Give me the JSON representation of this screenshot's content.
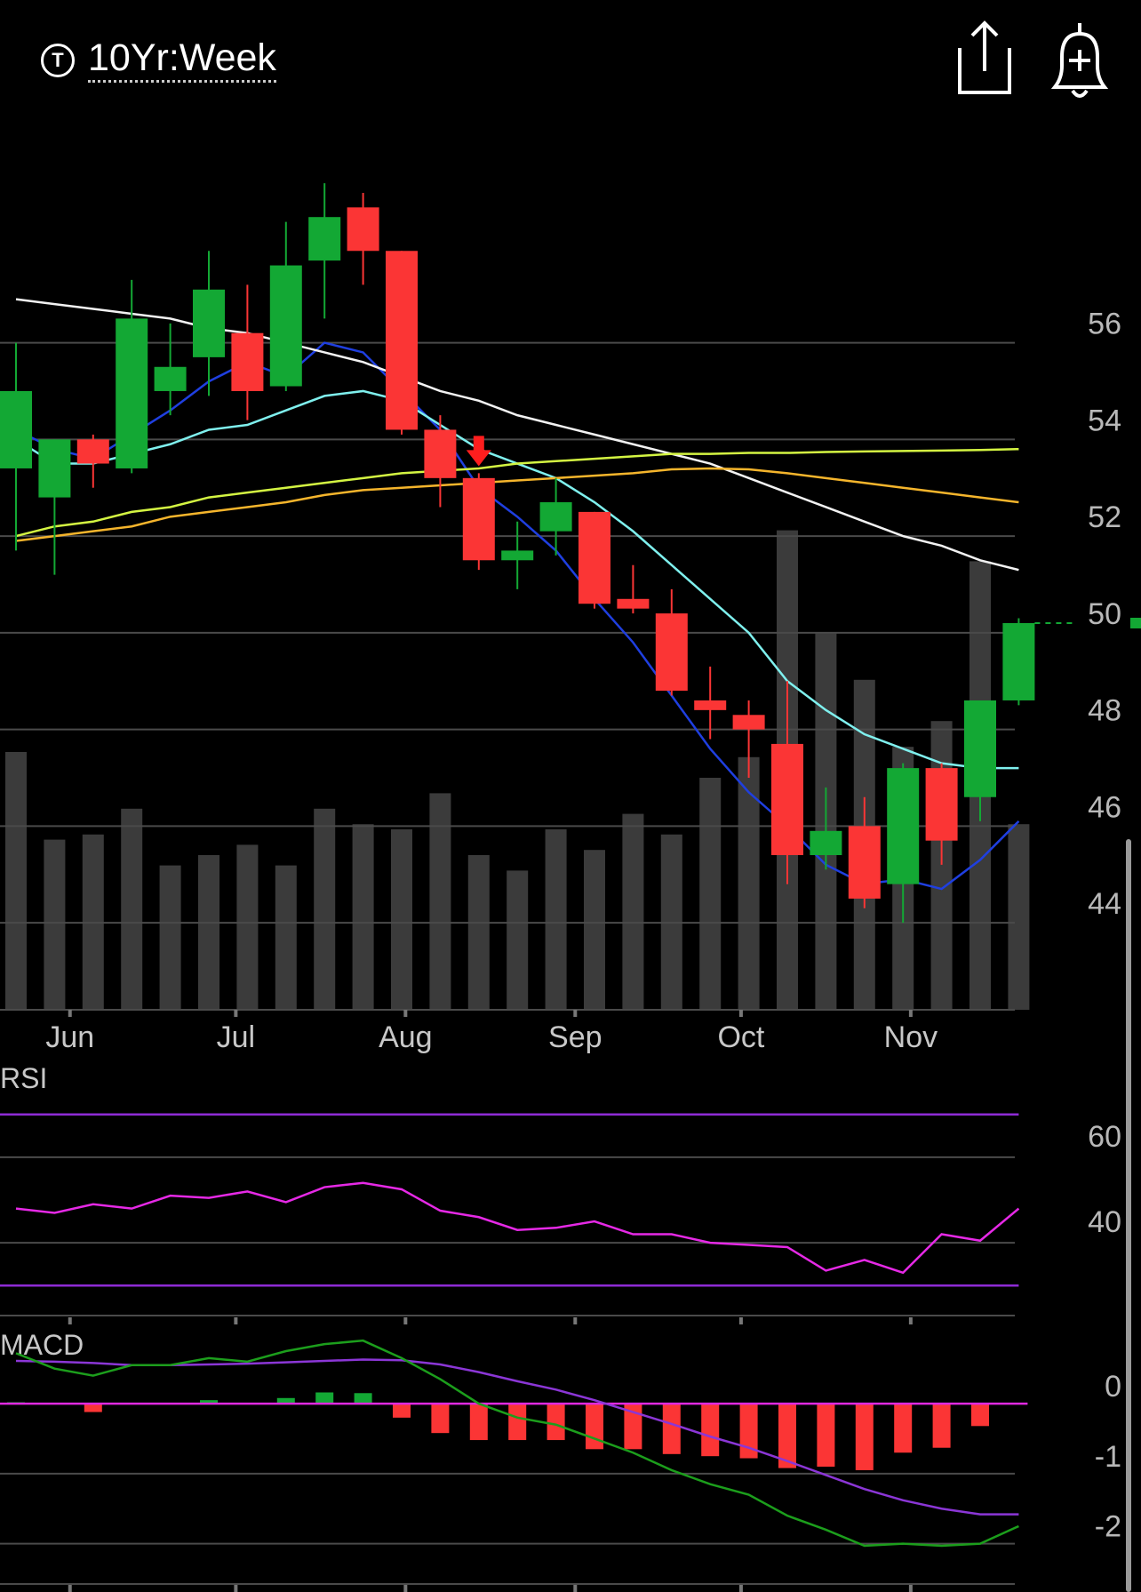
{
  "header": {
    "symbol_icon": "T",
    "title": "10Yr:Week",
    "share_icon": "share-icon",
    "alert_icon": "add-alert-bell-icon"
  },
  "colors": {
    "up": "#13a834",
    "down": "#fb3535",
    "volume": "#3b3b3b",
    "ma_blue": "#1f3fe0",
    "ma_cyan": "#7ff0ee",
    "ma_white": "#f2f2f2",
    "ma_lime": "#d4f542",
    "ma_orange": "#f5b52c",
    "rsi": "#e629e6",
    "rsi_bounds": "#8e2bd4",
    "macd": "#1c9e1c",
    "signal": "#8b36d6",
    "zero": "#e029e0"
  },
  "chart_data": [
    {
      "type": "candlestick",
      "panel": "price",
      "y_ticks": [
        56,
        54,
        52,
        50,
        48,
        46,
        44
      ],
      "ylim": [
        42.2,
        60.7
      ],
      "x_tick_labels": [
        {
          "label": "Jun",
          "index": 1.4
        },
        {
          "label": "Jul",
          "index": 5.7
        },
        {
          "label": "Aug",
          "index": 10.1
        },
        {
          "label": "Sep",
          "index": 14.5
        },
        {
          "label": "Oct",
          "index": 18.8
        },
        {
          "label": "Nov",
          "index": 23.2
        }
      ],
      "candles": [
        {
          "o": 53.4,
          "h": 56.0,
          "l": 51.7,
          "c": 55.0
        },
        {
          "o": 52.8,
          "h": 54.0,
          "l": 51.2,
          "c": 54.0
        },
        {
          "o": 54.0,
          "h": 54.1,
          "l": 53.0,
          "c": 53.5
        },
        {
          "o": 53.4,
          "h": 57.3,
          "l": 53.3,
          "c": 56.5
        },
        {
          "o": 55.0,
          "h": 56.4,
          "l": 54.5,
          "c": 55.5
        },
        {
          "o": 55.7,
          "h": 57.9,
          "l": 54.9,
          "c": 57.1
        },
        {
          "o": 56.2,
          "h": 57.2,
          "l": 54.4,
          "c": 55.0
        },
        {
          "o": 55.1,
          "h": 58.5,
          "l": 55.0,
          "c": 57.6
        },
        {
          "o": 57.7,
          "h": 59.3,
          "l": 56.5,
          "c": 58.6
        },
        {
          "o": 58.8,
          "h": 59.1,
          "l": 57.2,
          "c": 57.9
        },
        {
          "o": 57.9,
          "h": 57.9,
          "l": 54.1,
          "c": 54.2
        },
        {
          "o": 54.2,
          "h": 54.5,
          "l": 52.6,
          "c": 53.2
        },
        {
          "o": 53.2,
          "h": 53.3,
          "l": 51.3,
          "c": 51.5
        },
        {
          "o": 51.5,
          "h": 52.3,
          "l": 50.9,
          "c": 51.7
        },
        {
          "o": 52.1,
          "h": 53.2,
          "l": 51.6,
          "c": 52.7
        },
        {
          "o": 52.5,
          "h": 52.5,
          "l": 50.5,
          "c": 50.6
        },
        {
          "o": 50.7,
          "h": 51.4,
          "l": 50.4,
          "c": 50.5
        },
        {
          "o": 50.4,
          "h": 50.9,
          "l": 48.7,
          "c": 48.8
        },
        {
          "o": 48.6,
          "h": 49.3,
          "l": 47.8,
          "c": 48.4
        },
        {
          "o": 48.3,
          "h": 48.6,
          "l": 47.0,
          "c": 48.0
        },
        {
          "o": 47.7,
          "h": 49.0,
          "l": 44.8,
          "c": 45.4
        },
        {
          "o": 45.4,
          "h": 46.8,
          "l": 45.1,
          "c": 45.9
        },
        {
          "o": 46.0,
          "h": 46.6,
          "l": 44.3,
          "c": 44.5
        },
        {
          "o": 44.8,
          "h": 47.3,
          "l": 44.0,
          "c": 47.2
        },
        {
          "o": 47.2,
          "h": 47.3,
          "l": 45.2,
          "c": 45.7
        },
        {
          "o": 46.6,
          "h": 48.6,
          "l": 46.1,
          "c": 48.6
        },
        {
          "o": 48.6,
          "h": 50.3,
          "l": 48.5,
          "c": 50.2
        }
      ],
      "volume": [
        0.5,
        0.33,
        0.34,
        0.39,
        0.28,
        0.3,
        0.32,
        0.28,
        0.39,
        0.36,
        0.35,
        0.42,
        0.3,
        0.27,
        0.35,
        0.31,
        0.38,
        0.34,
        0.45,
        0.49,
        0.93,
        0.73,
        0.64,
        0.51,
        0.56,
        0.87,
        0.36
      ],
      "moving_averages": [
        {
          "color_key": "ma_blue",
          "values": [
            54.2,
            53.8,
            53.6,
            54.1,
            54.6,
            55.2,
            55.6,
            55.3,
            56.0,
            55.8,
            55.0,
            54.2,
            53.0,
            52.4,
            51.7,
            50.7,
            49.8,
            48.7,
            47.6,
            46.7,
            46.0,
            45.2,
            44.8,
            44.9,
            44.7,
            45.3,
            46.1
          ]
        },
        {
          "color_key": "ma_cyan",
          "values": [
            54.0,
            53.5,
            53.5,
            53.7,
            53.9,
            54.2,
            54.3,
            54.6,
            54.9,
            55.0,
            54.8,
            54.3,
            53.8,
            53.5,
            53.2,
            52.7,
            52.1,
            51.4,
            50.7,
            50.0,
            49.0,
            48.4,
            47.9,
            47.6,
            47.3,
            47.2,
            47.2
          ]
        },
        {
          "color_key": "ma_white",
          "values": [
            56.9,
            56.8,
            56.7,
            56.6,
            56.5,
            56.3,
            56.2,
            56.0,
            55.8,
            55.6,
            55.3,
            55.0,
            54.8,
            54.5,
            54.3,
            54.1,
            53.9,
            53.7,
            53.5,
            53.2,
            52.9,
            52.6,
            52.3,
            52.0,
            51.8,
            51.5,
            51.3
          ]
        },
        {
          "color_key": "ma_lime",
          "values": [
            52.0,
            52.2,
            52.3,
            52.5,
            52.6,
            52.8,
            52.9,
            53.0,
            53.1,
            53.2,
            53.3,
            53.35,
            53.4,
            53.5,
            53.55,
            53.6,
            53.65,
            53.7,
            53.7,
            53.72,
            53.72,
            53.74,
            53.75,
            53.76,
            53.77,
            53.78,
            53.8
          ]
        },
        {
          "color_key": "ma_orange",
          "values": [
            51.9,
            52.0,
            52.1,
            52.2,
            52.4,
            52.5,
            52.6,
            52.7,
            52.85,
            52.95,
            53.0,
            53.05,
            53.1,
            53.15,
            53.2,
            53.25,
            53.3,
            53.38,
            53.4,
            53.38,
            53.3,
            53.2,
            53.1,
            53.0,
            52.9,
            52.8,
            52.7
          ]
        }
      ],
      "last_price": 50.2,
      "signal_marker_index": 12,
      "grid": true
    },
    {
      "type": "line",
      "panel": "rsi",
      "title": "RSI",
      "y_ticks": [
        60,
        40
      ],
      "upper_band": 70,
      "lower_band": 30,
      "ylim": [
        23,
        77
      ],
      "values": [
        48,
        47,
        49,
        48,
        51,
        50.5,
        52,
        49.5,
        53,
        54,
        52.5,
        47.5,
        46,
        43,
        43.5,
        45,
        42,
        42,
        40,
        39.5,
        39,
        33.5,
        36,
        33,
        42,
        40.5,
        48
      ]
    },
    {
      "type": "line",
      "panel": "macd",
      "title": "MACD",
      "y_ticks": [
        0,
        -1,
        -2
      ],
      "ylim": [
        -2.55,
        0.75
      ],
      "macd": [
        0.72,
        0.5,
        0.4,
        0.55,
        0.55,
        0.65,
        0.6,
        0.75,
        0.85,
        0.9,
        0.65,
        0.35,
        0.0,
        -0.2,
        -0.3,
        -0.5,
        -0.7,
        -0.95,
        -1.15,
        -1.3,
        -1.6,
        -1.8,
        -2.03,
        -2.0,
        -2.03,
        -2.0,
        -1.75
      ],
      "signal": [
        0.61,
        0.6,
        0.58,
        0.55,
        0.55,
        0.56,
        0.57,
        0.59,
        0.61,
        0.63,
        0.62,
        0.56,
        0.45,
        0.32,
        0.2,
        0.05,
        -0.12,
        -0.29,
        -0.47,
        -0.63,
        -0.82,
        -1.02,
        -1.22,
        -1.38,
        -1.5,
        -1.58,
        -1.58
      ],
      "histogram": [
        0.02,
        0.0,
        -0.12,
        0.0,
        0.0,
        0.05,
        0.0,
        0.08,
        0.16,
        0.15,
        -0.2,
        -0.42,
        -0.52,
        -0.52,
        -0.52,
        -0.65,
        -0.65,
        -0.72,
        -0.75,
        -0.78,
        -0.92,
        -0.9,
        -0.95,
        -0.7,
        -0.63,
        -0.32,
        0.0
      ]
    }
  ]
}
